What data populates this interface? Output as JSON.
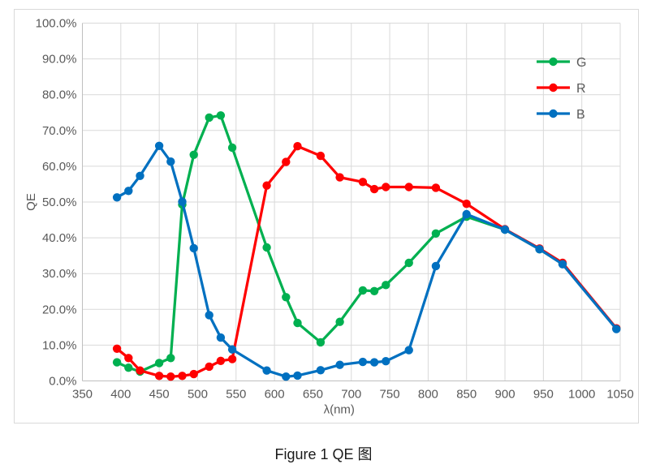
{
  "caption": "Figure 1 QE 图",
  "chart_data": {
    "type": "line",
    "title": "",
    "xlabel": "λ(nm)",
    "ylabel": "QE",
    "xlim": [
      350,
      1050
    ],
    "ylim": [
      0,
      100
    ],
    "grid": true,
    "legend_position": "inside-top-right",
    "x_ticks": [
      350,
      400,
      450,
      500,
      550,
      600,
      650,
      700,
      750,
      800,
      850,
      900,
      950,
      1000,
      1050
    ],
    "y_tick_labels": [
      "0.0%",
      "10.0%",
      "20.0%",
      "30.0%",
      "40.0%",
      "50.0%",
      "60.0%",
      "70.0%",
      "80.0%",
      "90.0%",
      "100.0%"
    ],
    "y_tick_values": [
      0,
      10,
      20,
      30,
      40,
      50,
      60,
      70,
      80,
      90,
      100
    ],
    "x": [
      395,
      410,
      425,
      450,
      465,
      480,
      495,
      515,
      530,
      545,
      590,
      615,
      630,
      660,
      685,
      715,
      730,
      745,
      775,
      810,
      850,
      900,
      945,
      975,
      1045
    ],
    "series": [
      {
        "name": "G",
        "color": "#00B050",
        "values": [
          5.2,
          3.7,
          2.6,
          5.0,
          6.4,
          49.3,
          63.2,
          73.6,
          74.2,
          65.2,
          37.3,
          23.4,
          16.2,
          10.8,
          16.5,
          25.3,
          25.1,
          26.8,
          33.0,
          41.2,
          45.9,
          42.3,
          36.8,
          32.7,
          14.6
        ]
      },
      {
        "name": "R",
        "color": "#FF0000",
        "values": [
          9.0,
          6.4,
          2.9,
          1.4,
          1.2,
          1.4,
          1.9,
          4.0,
          5.6,
          6.1,
          54.6,
          61.2,
          65.6,
          62.9,
          56.9,
          55.6,
          53.6,
          54.2,
          54.2,
          54.0,
          49.5,
          42.4,
          37.0,
          33.0,
          14.7
        ]
      },
      {
        "name": "B",
        "color": "#0070C0",
        "values": [
          51.3,
          53.1,
          57.3,
          65.7,
          61.3,
          50.1,
          37.1,
          18.4,
          12.1,
          8.8,
          2.9,
          1.2,
          1.5,
          3.0,
          4.5,
          5.3,
          5.2,
          5.5,
          8.6,
          32.1,
          46.6,
          42.3,
          36.8,
          32.6,
          14.5
        ]
      }
    ],
    "style": {
      "gridline_color": "#d9d9d9",
      "axis_line_color": "#bfbfbf",
      "tick_label_color": "#595959",
      "axis_title_color": "#595959"
    }
  }
}
